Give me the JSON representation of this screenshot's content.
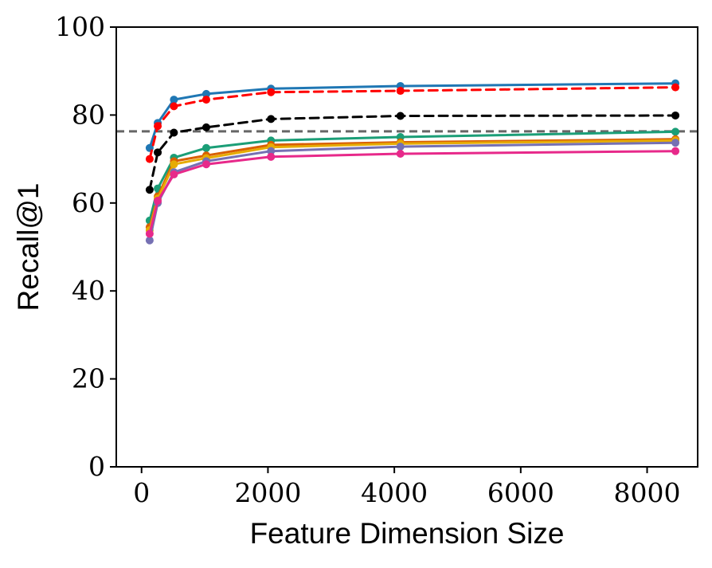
{
  "chart_data": {
    "type": "line",
    "title": "",
    "xlabel": "Feature Dimension Size",
    "ylabel": "Recall@1",
    "xlim": [
      -400,
      8800
    ],
    "ylim": [
      0,
      100
    ],
    "xticks": [
      0,
      2000,
      4000,
      6000,
      8000
    ],
    "xtick_labels": [
      "0",
      "2000",
      "4000",
      "6000",
      "8000"
    ],
    "yticks": [
      0,
      20,
      40,
      60,
      80,
      100
    ],
    "ytick_labels": [
      "0",
      "20",
      "40",
      "60",
      "80",
      "100"
    ],
    "grid": false,
    "x": [
      128,
      256,
      512,
      1024,
      2048,
      4096,
      8448
    ],
    "reference_line": {
      "y": 76.3,
      "color": "#666666",
      "style": "dashed"
    },
    "series": [
      {
        "color": "#1f77b4",
        "style": "solid",
        "values": [
          72.5,
          78.2,
          83.5,
          84.8,
          86.0,
          86.6,
          87.2
        ]
      },
      {
        "color": "#ff0000",
        "style": "dashed",
        "values": [
          70.0,
          77.5,
          82.0,
          83.5,
          85.2,
          85.5,
          86.3
        ]
      },
      {
        "color": "#000000",
        "style": "dashed",
        "values": [
          63.0,
          71.5,
          76.0,
          77.2,
          79.1,
          79.8,
          79.9
        ]
      },
      {
        "color": "#1b9e77",
        "style": "solid",
        "values": [
          56.0,
          63.3,
          70.3,
          72.5,
          74.2,
          75.0,
          76.2
        ]
      },
      {
        "color": "#d95f02",
        "style": "solid",
        "values": [
          54.5,
          61.5,
          69.5,
          70.8,
          73.2,
          73.8,
          74.5
        ]
      },
      {
        "color": "#e6ab02",
        "style": "solid",
        "values": [
          53.8,
          61.0,
          68.8,
          70.2,
          72.7,
          73.5,
          74.2
        ]
      },
      {
        "color": "#7570b3",
        "style": "solid",
        "values": [
          51.5,
          60.0,
          67.0,
          69.5,
          71.8,
          72.8,
          73.7
        ]
      },
      {
        "color": "#e7298a",
        "style": "solid",
        "values": [
          53.0,
          60.5,
          66.5,
          68.8,
          70.5,
          71.2,
          71.8
        ]
      }
    ]
  }
}
